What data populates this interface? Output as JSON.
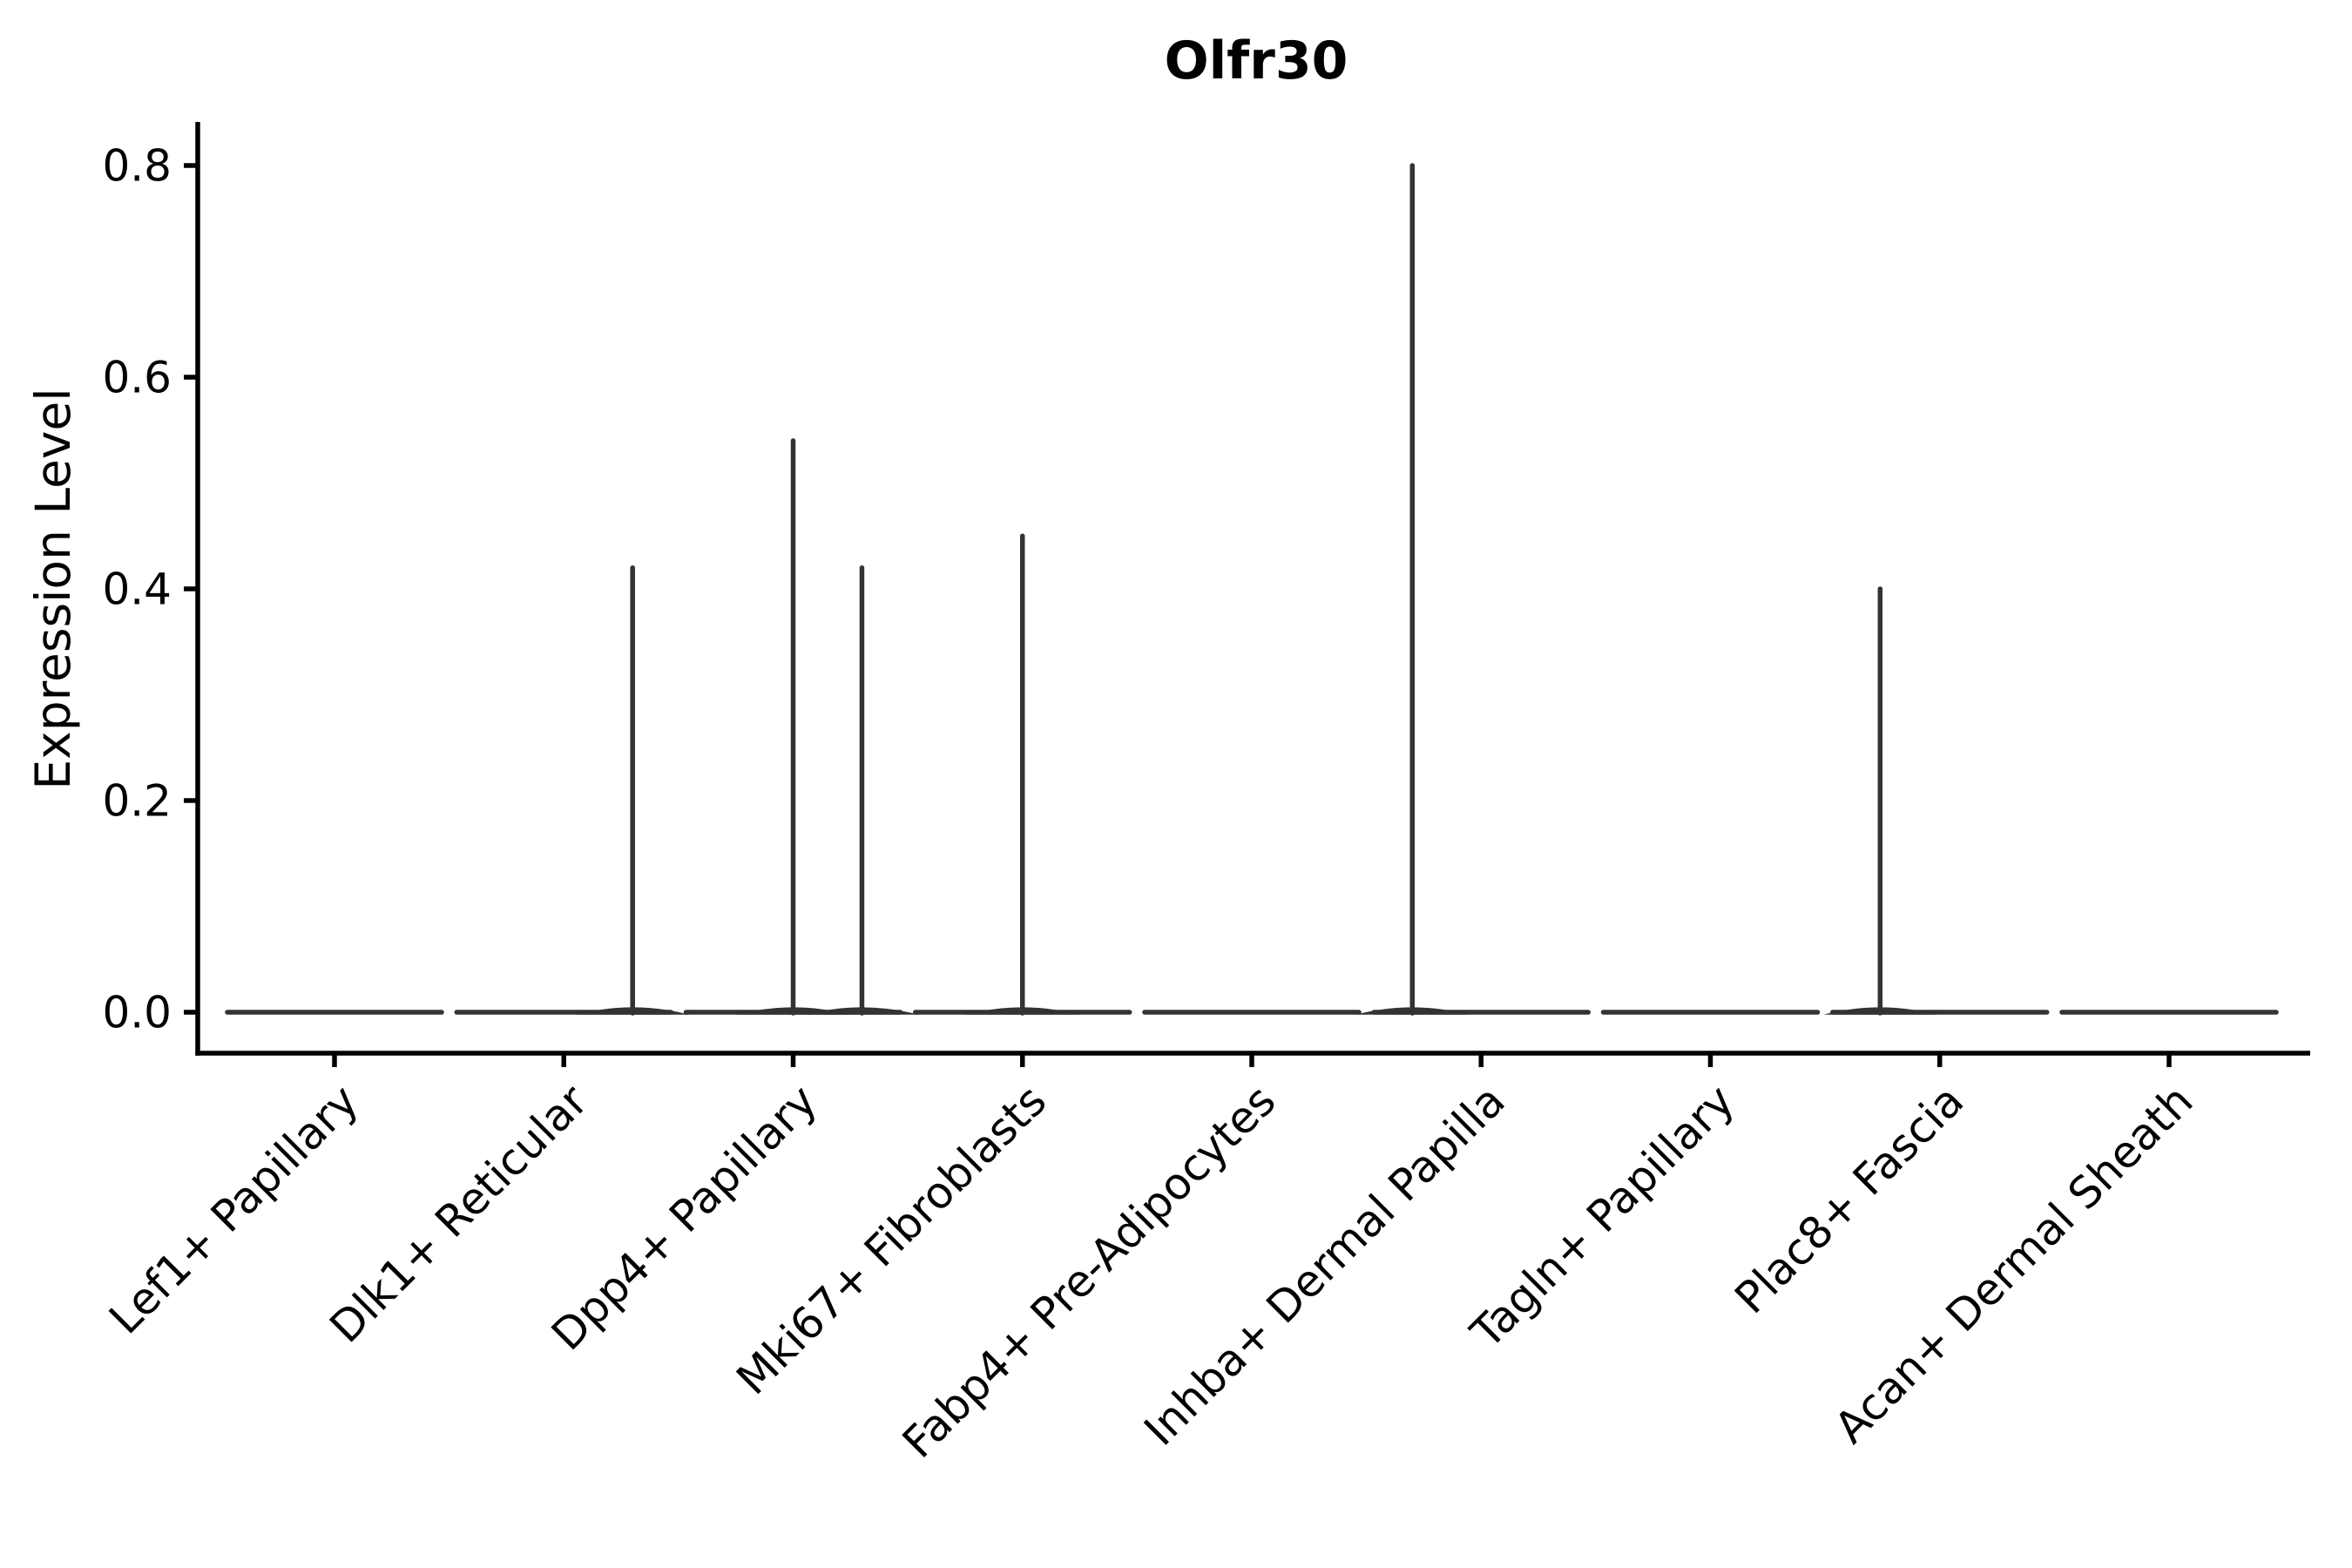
{
  "figure": {
    "title": "Olfr30",
    "ylabel": "Expression Level"
  },
  "chart_data": {
    "type": "violin",
    "title": "Olfr30",
    "subtitle": "",
    "xlabel": "",
    "ylabel": "Expression Level",
    "categories": [
      "Lef1+ Papillary",
      "Dlk1+ Reticular",
      "Dpp4+ Papillary",
      "Mki67+ Fibroblasts",
      "Fabp4+ Pre-Adipocytes",
      "Inhba+ Dermal Papilla",
      "Tagln+ Papillary",
      "Plac8+ Fascia",
      "Acan+ Dermal Sheath"
    ],
    "yticks": [
      0.0,
      0.2,
      0.4,
      0.6,
      0.8
    ],
    "ylim": [
      0.0,
      0.84
    ],
    "grid": false,
    "legend": "none",
    "x_tick_label_rotation_deg": 45,
    "colors": {
      "violin": "#333333",
      "axis": "#000000",
      "background": "#ffffff"
    },
    "description": "Violin plot of Olfr30 expression per fibroblast cluster; all clusters show a flat violin at expression 0, with thin density spikes marking rare expressing cells.",
    "violins": [
      {
        "category": "Lef1+ Papillary",
        "zero_body": true,
        "spikes": []
      },
      {
        "category": "Dlk1+ Reticular",
        "zero_body": true,
        "spikes": [
          {
            "x_offset_frac": 0.3,
            "value": 0.42
          }
        ]
      },
      {
        "category": "Dpp4+ Papillary",
        "zero_body": true,
        "spikes": [
          {
            "x_offset_frac": 0.0,
            "value": 0.54
          },
          {
            "x_offset_frac": 0.3,
            "value": 0.42
          }
        ]
      },
      {
        "category": "Mki67+ Fibroblasts",
        "zero_body": true,
        "spikes": [
          {
            "x_offset_frac": 0.0,
            "value": 0.45
          }
        ]
      },
      {
        "category": "Fabp4+ Pre-Adipocytes",
        "zero_body": true,
        "spikes": []
      },
      {
        "category": "Inhba+ Dermal Papilla",
        "zero_body": true,
        "spikes": [
          {
            "x_offset_frac": -0.3,
            "value": 0.8
          }
        ]
      },
      {
        "category": "Tagln+ Papillary",
        "zero_body": true,
        "spikes": []
      },
      {
        "category": "Plac8+ Fascia",
        "zero_body": true,
        "spikes": [
          {
            "x_offset_frac": -0.26,
            "value": 0.4
          }
        ]
      },
      {
        "category": "Acan+ Dermal Sheath",
        "zero_body": true,
        "spikes": []
      }
    ]
  }
}
